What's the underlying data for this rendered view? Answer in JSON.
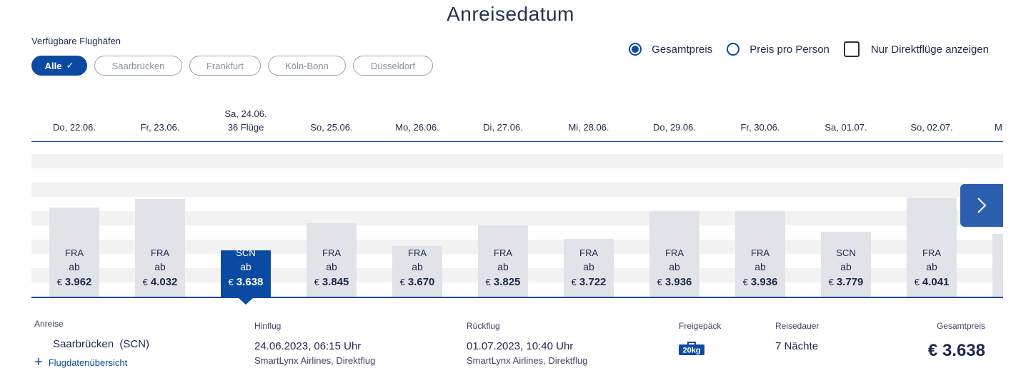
{
  "header": {
    "title": "Anreisedatum"
  },
  "airports": {
    "label": "Verfügbare Flughäfen",
    "chips": [
      {
        "label": "Alle",
        "active": true
      },
      {
        "label": "Saarbrücken",
        "active": false
      },
      {
        "label": "Frankfurt",
        "active": false
      },
      {
        "label": "Köln-Bonn",
        "active": false
      },
      {
        "label": "Düsseldorf",
        "active": false
      }
    ]
  },
  "options": {
    "total_price": "Gesamtpreis",
    "per_person": "Preis pro Person",
    "direct_only": "Nur Direktflüge anzeigen"
  },
  "dates": [
    {
      "label": "Do, 22.06."
    },
    {
      "label": "Fr, 23.06."
    },
    {
      "label": "Sa, 24.06.",
      "flights": "36 Flüge",
      "selected": true
    },
    {
      "label": "So, 25.06."
    },
    {
      "label": "Mo, 26.06."
    },
    {
      "label": "Di, 27.06."
    },
    {
      "label": "Mi, 28.06."
    },
    {
      "label": "Do, 29.06."
    },
    {
      "label": "Fr, 30.06."
    },
    {
      "label": "Sa, 01.07."
    },
    {
      "label": "So, 02.07."
    },
    {
      "label": "M"
    }
  ],
  "chart_data": {
    "type": "bar",
    "categories": [
      "Do, 22.06.",
      "Fr, 23.06.",
      "Sa, 24.06.",
      "So, 25.06.",
      "Mo, 26.06.",
      "Di, 27.06.",
      "Mi, 28.06.",
      "Do, 29.06.",
      "Fr, 30.06.",
      "Sa, 01.07.",
      "So, 02.07."
    ],
    "airports": [
      "FRA",
      "FRA",
      "SCN",
      "FRA",
      "FRA",
      "FRA",
      "FRA",
      "FRA",
      "FRA",
      "SCN",
      "FRA"
    ],
    "values": [
      3962,
      4032,
      3638,
      3845,
      3670,
      3825,
      3722,
      3936,
      3936,
      3779,
      4041
    ],
    "labels": [
      "3.962",
      "4.032",
      "3.638",
      "3.845",
      "3.670",
      "3.825",
      "3.722",
      "3.936",
      "3.936",
      "3.779",
      "4.041"
    ],
    "prefix": "ab",
    "currency": "€",
    "selected_index": 2
  },
  "colors": {
    "accent": "#0a4aa3",
    "bar": "#e1e3e8"
  },
  "summary": {
    "anreise_label": "Anreise",
    "airport": "Saarbrücken  (SCN)",
    "link": "Flugdatenübersicht",
    "outbound_label": "Hinflug",
    "outbound_time": "24.06.2023, 06:15 Uhr",
    "outbound_airline": "SmartLynx Airlines, Direktflug",
    "return_label": "Rückflug",
    "return_time": "01.07.2023, 10:40 Uhr",
    "return_airline": "SmartLynx Airlines, Direktflug",
    "baggage_label": "Freigepäck",
    "baggage_value": "20kg",
    "duration_label": "Reisedauer",
    "duration_value": "7 Nächte",
    "total_label": "Gesamtpreis",
    "total_value": "€ 3.638"
  }
}
